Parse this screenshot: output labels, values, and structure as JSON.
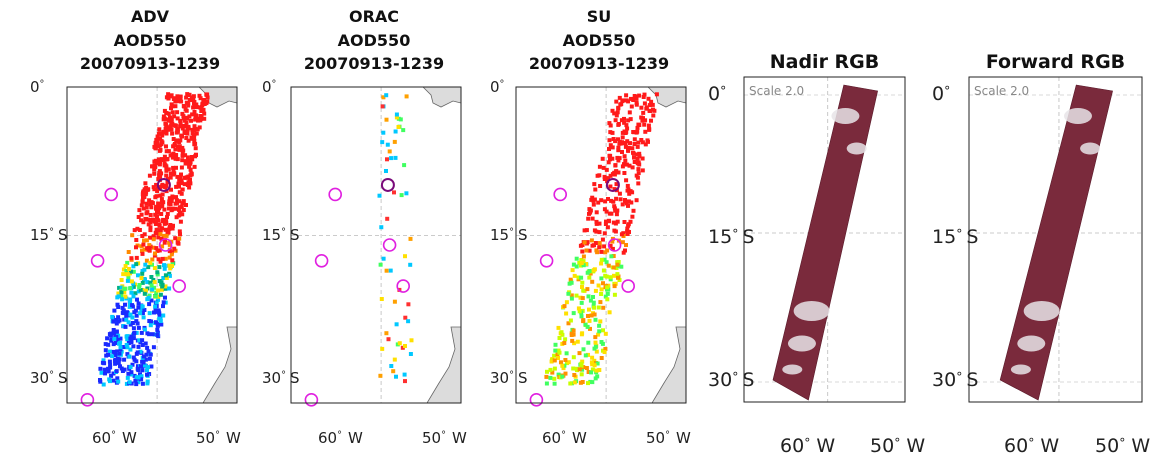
{
  "panels": [
    {
      "id": "adv",
      "title_lines": [
        "ADV",
        "AOD550",
        "20070913-1239"
      ],
      "kind": "aod",
      "lat_labels": [
        "0",
        "15",
        "30"
      ],
      "lat_hemi": "S",
      "lon_labels": [
        "60",
        "50"
      ],
      "lon_hemi": "W"
    },
    {
      "id": "orac",
      "title_lines": [
        "ORAC",
        "AOD550",
        "20070913-1239"
      ],
      "kind": "aod",
      "lat_labels": [
        "0",
        "15",
        "30"
      ],
      "lat_hemi": "S",
      "lon_labels": [
        "60",
        "50"
      ],
      "lon_hemi": "W"
    },
    {
      "id": "su",
      "title_lines": [
        "SU",
        "AOD550",
        "20070913-1239"
      ],
      "kind": "aod",
      "lat_labels": [
        "0",
        "15",
        "30"
      ],
      "lat_hemi": "S",
      "lon_labels": [
        "60",
        "50"
      ],
      "lon_hemi": "W"
    },
    {
      "id": "nadir",
      "title_lines": [
        "Nadir RGB"
      ],
      "kind": "rgb",
      "scale_note": "Scale 2.0",
      "lat_labels": [
        "0",
        "15",
        "30"
      ],
      "lat_hemi": "S",
      "lon_labels": [
        "60",
        "50"
      ],
      "lon_hemi": "W"
    },
    {
      "id": "forward",
      "title_lines": [
        "Forward RGB"
      ],
      "kind": "rgb",
      "scale_note": "Scale 2.0",
      "lat_labels": [
        "0",
        "15",
        "30"
      ],
      "lat_hemi": "S",
      "lon_labels": [
        "60",
        "50"
      ],
      "lon_hemi": "W"
    }
  ],
  "colors": {
    "ground_station_marker": "#e020e0",
    "land_fill": "#dcdcdc",
    "rgb_swath": "#7a2a3c",
    "aod_high": "#ff1a1a",
    "aod_mid": "#ffe000",
    "aod_low": "#1a2aff"
  }
}
